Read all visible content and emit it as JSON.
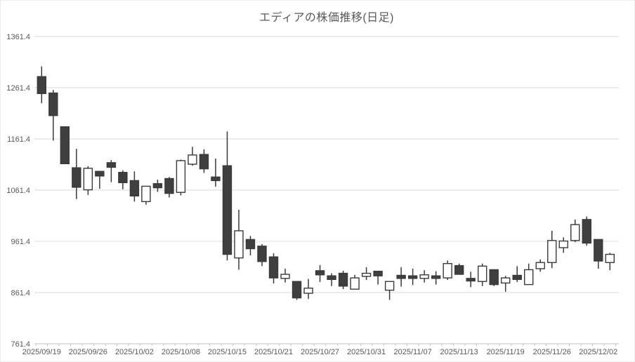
{
  "title": "エディアの株価推移(日足)",
  "y_axis": {
    "labels": [
      "1361.4",
      "1261.4",
      "1161.4",
      "1061.4",
      "961.4",
      "861.4",
      "761.4"
    ]
  },
  "x_axis": {
    "interval": 4,
    "labels": [
      "2025/09/19",
      "2025/09/26",
      "2025/10/02",
      "2025/10/08",
      "2025/10/15",
      "2025/10/21",
      "2025/10/27",
      "2025/10/31",
      "2025/11/07",
      "2025/11/13",
      "2025/11/19",
      "2025/11/26",
      "2025/12/02"
    ]
  },
  "chart_data": {
    "type": "candlestick",
    "title": "エディアの株価推移(日足)",
    "y_min": 761.4,
    "y_max": 1361.4,
    "y_step": 100,
    "grid": true,
    "dates": [
      "2025/09/19",
      "2025/09/22",
      "2025/09/24",
      "2025/09/25",
      "2025/09/26",
      "2025/09/29",
      "2025/09/30",
      "2025/10/01",
      "2025/10/02",
      "2025/10/03",
      "2025/10/06",
      "2025/10/07",
      "2025/10/08",
      "2025/10/09",
      "2025/10/10",
      "2025/10/14",
      "2025/10/15",
      "2025/10/16",
      "2025/10/17",
      "2025/10/20",
      "2025/10/21",
      "2025/10/22",
      "2025/10/23",
      "2025/10/24",
      "2025/10/27",
      "2025/10/28",
      "2025/10/29",
      "2025/10/30",
      "2025/10/31",
      "2025/11/04",
      "2025/11/05",
      "2025/11/06",
      "2025/11/07",
      "2025/11/10",
      "2025/11/11",
      "2025/11/12",
      "2025/11/13",
      "2025/11/14",
      "2025/11/17",
      "2025/11/18",
      "2025/11/19",
      "2025/11/20",
      "2025/11/21",
      "2025/11/25",
      "2025/11/26",
      "2025/11/27",
      "2025/11/28",
      "2025/12/01",
      "2025/12/02",
      "2025/12/03"
    ],
    "open": [
      1283,
      1251,
      1185,
      1105,
      1062,
      1098,
      1115,
      1096,
      1080,
      1039,
      1074,
      1084,
      1057,
      1112,
      1131,
      1087,
      1109,
      929,
      965,
      952,
      931,
      889,
      883,
      860,
      904,
      894,
      899,
      868,
      893,
      903,
      866,
      895,
      894,
      889,
      894,
      890,
      914,
      889,
      883,
      906,
      880,
      895,
      877,
      908,
      920,
      949,
      963,
      1004,
      965,
      920
    ],
    "high": [
      1303,
      1257,
      1185,
      1142,
      1108,
      1098,
      1120,
      1100,
      1098,
      1069,
      1082,
      1087,
      1121,
      1146,
      1141,
      1123,
      1176,
      1023,
      972,
      956,
      938,
      908,
      883,
      888,
      915,
      899,
      904,
      896,
      911,
      903,
      883,
      911,
      908,
      905,
      903,
      924,
      918,
      902,
      918,
      906,
      894,
      913,
      918,
      926,
      982,
      969,
      1004,
      1010,
      965,
      939
    ],
    "low": [
      1231,
      1158,
      1113,
      1044,
      1052,
      1064,
      1077,
      1063,
      1039,
      1033,
      1058,
      1047,
      1051,
      1109,
      1095,
      1068,
      924,
      906,
      934,
      913,
      879,
      881,
      847,
      849,
      882,
      874,
      868,
      868,
      886,
      877,
      847,
      873,
      876,
      881,
      877,
      886,
      897,
      872,
      874,
      874,
      863,
      882,
      877,
      902,
      909,
      939,
      960,
      953,
      908,
      905
    ],
    "close": [
      1250,
      1207,
      1113,
      1067,
      1104,
      1089,
      1106,
      1076,
      1050,
      1069,
      1066,
      1055,
      1119,
      1130,
      1103,
      1080,
      936,
      982,
      947,
      922,
      890,
      897,
      851,
      870,
      896,
      887,
      874,
      890,
      899,
      894,
      883,
      889,
      889,
      896,
      889,
      918,
      897,
      884,
      913,
      877,
      890,
      887,
      906,
      920,
      963,
      962,
      994,
      958,
      923,
      936
    ],
    "colors": {
      "up_fill": "#ffffff",
      "down_fill": "#3f3f3f",
      "border": "#3a3a3a",
      "wick": "#3a3a3a",
      "grid": "#d9d9d9",
      "axis": "#c0c0c0",
      "text": "#595959"
    }
  }
}
